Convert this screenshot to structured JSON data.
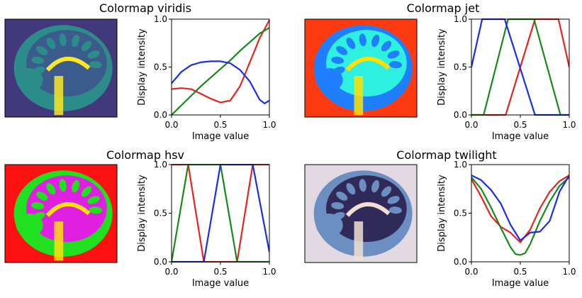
{
  "chart_data": [
    {
      "type": "line",
      "title": "Colormap viridis",
      "xlabel": "Image value",
      "ylabel": "Display intensity",
      "xlim": [
        0,
        1
      ],
      "ylim": [
        0,
        1
      ],
      "xticks": [
        "0.0",
        "0.5",
        "1.0"
      ],
      "yticks": [
        "0.0",
        "0.5",
        "1.0"
      ],
      "image_colors": [
        "#22d0a0",
        "#2c8c8a",
        "#3b5b8c",
        "#41397c",
        "#fde725"
      ],
      "series": [
        {
          "color": "#e8231c",
          "x": [
            0,
            0.1,
            0.2,
            0.3,
            0.4,
            0.5,
            0.6,
            0.7,
            0.8,
            0.9,
            1.0
          ],
          "values": [
            0.27,
            0.28,
            0.27,
            0.22,
            0.17,
            0.13,
            0.15,
            0.3,
            0.55,
            0.8,
            0.99
          ]
        },
        {
          "color": "#168a16",
          "x": [
            0,
            0.1,
            0.2,
            0.3,
            0.4,
            0.5,
            0.6,
            0.7,
            0.8,
            0.9,
            1.0
          ],
          "values": [
            0.0,
            0.1,
            0.2,
            0.3,
            0.39,
            0.48,
            0.57,
            0.67,
            0.76,
            0.85,
            0.91
          ]
        },
        {
          "color": "#1a2ee8",
          "x": [
            0,
            0.1,
            0.2,
            0.3,
            0.4,
            0.5,
            0.6,
            0.7,
            0.8,
            0.9,
            0.95,
            1.0
          ],
          "values": [
            0.33,
            0.45,
            0.52,
            0.55,
            0.56,
            0.56,
            0.54,
            0.47,
            0.35,
            0.16,
            0.12,
            0.15
          ]
        }
      ]
    },
    {
      "type": "line",
      "title": "Colormap jet",
      "xlabel": "Image value",
      "ylabel": "Display intensity",
      "xlim": [
        0,
        1
      ],
      "ylim": [
        0,
        1
      ],
      "xticks": [
        "0.0",
        "0.5",
        "1.0"
      ],
      "yticks": [
        "0.0",
        "0.5",
        "1.0"
      ],
      "image_colors": [
        "#0a1aa8",
        "#1f7fff",
        "#2ef0e0",
        "#ff3a10",
        "#ffe000"
      ],
      "series": [
        {
          "color": "#e8231c",
          "x": [
            0,
            0.35,
            0.65,
            0.89,
            1.0
          ],
          "values": [
            0,
            0,
            1,
            1,
            0.5
          ]
        },
        {
          "color": "#168a16",
          "x": [
            0,
            0.125,
            0.375,
            0.64,
            0.91,
            1.0
          ],
          "values": [
            0,
            0,
            1,
            1,
            0,
            0
          ]
        },
        {
          "color": "#1a2ee8",
          "x": [
            0,
            0.11,
            0.34,
            0.65,
            1.0
          ],
          "values": [
            0.5,
            1,
            1,
            0,
            0
          ]
        }
      ]
    },
    {
      "type": "line",
      "title": "Colormap hsv",
      "xlabel": "Image value",
      "ylabel": "Display intensity",
      "xlim": [
        0,
        1
      ],
      "ylim": [
        0,
        1
      ],
      "xticks": [
        "0.0",
        "0.5",
        "1.0"
      ],
      "yticks": [
        "0.0",
        "0.5",
        "1.0"
      ],
      "image_colors": [
        "#ff1010",
        "#20e020",
        "#e020e0",
        "#2050ff",
        "#ffe010"
      ],
      "series": [
        {
          "color": "#e8231c",
          "x": [
            0,
            0.17,
            0.33,
            0.67,
            0.83,
            1.0
          ],
          "values": [
            1,
            1,
            0,
            0,
            1,
            1
          ]
        },
        {
          "color": "#168a16",
          "x": [
            0,
            0.17,
            0.5,
            0.67,
            1.0
          ],
          "values": [
            0,
            1,
            1,
            0,
            0
          ]
        },
        {
          "color": "#1a2ee8",
          "x": [
            0,
            0.33,
            0.5,
            0.83,
            1.0
          ],
          "values": [
            0,
            0,
            1,
            1,
            0.1
          ]
        }
      ]
    },
    {
      "type": "line",
      "title": "Colormap twilight",
      "xlabel": "Image value",
      "ylabel": "Display intensity",
      "xlim": [
        0,
        1
      ],
      "ylim": [
        0,
        1
      ],
      "xticks": [
        "0.0",
        "0.5",
        "1.0"
      ],
      "yticks": [
        "0.0",
        "0.5",
        "1.0"
      ],
      "image_colors": [
        "#e2d9e2",
        "#6a8fc0",
        "#2f2a5a",
        "#c0603a",
        "#f0e0d0"
      ],
      "series": [
        {
          "color": "#e8231c",
          "x": [
            0,
            0.1,
            0.2,
            0.3,
            0.4,
            0.5,
            0.6,
            0.7,
            0.8,
            0.9,
            1.0
          ],
          "values": [
            0.85,
            0.67,
            0.47,
            0.36,
            0.3,
            0.2,
            0.33,
            0.55,
            0.72,
            0.83,
            0.89
          ]
        },
        {
          "color": "#168a16",
          "x": [
            0,
            0.1,
            0.2,
            0.3,
            0.4,
            0.45,
            0.5,
            0.55,
            0.6,
            0.7,
            0.8,
            0.9,
            1.0
          ],
          "values": [
            0.87,
            0.75,
            0.56,
            0.35,
            0.15,
            0.08,
            0.07,
            0.09,
            0.18,
            0.42,
            0.62,
            0.78,
            0.87
          ]
        },
        {
          "color": "#1a2ee8",
          "x": [
            0,
            0.1,
            0.2,
            0.3,
            0.4,
            0.5,
            0.55,
            0.6,
            0.7,
            0.8,
            0.9,
            1.0
          ],
          "values": [
            0.89,
            0.84,
            0.74,
            0.6,
            0.38,
            0.22,
            0.26,
            0.3,
            0.31,
            0.42,
            0.72,
            0.89
          ]
        }
      ]
    }
  ]
}
